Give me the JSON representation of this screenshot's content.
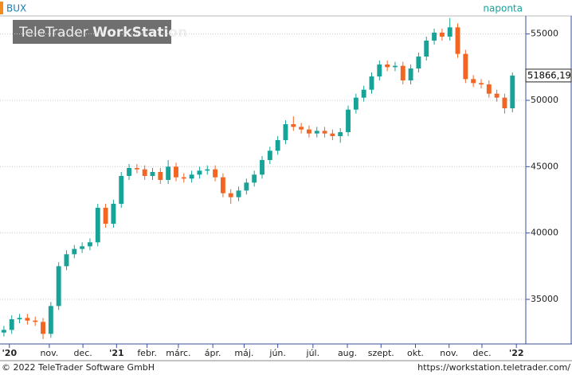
{
  "chart_data": {
    "type": "candlestick",
    "title": "BUX",
    "interval": "naponta",
    "watermark": [
      "TeleTrader",
      "WorkStation"
    ],
    "footer_left": "© 2022 TeleTrader Software GmbH",
    "footer_right": "https://workstation.teletrader.com/",
    "last_value_label": "51866,19",
    "up_color": "#17a398",
    "down_color": "#f26522",
    "grid": true,
    "xlim": [
      -0.5,
      66.5
    ],
    "xticks": [
      {
        "value": 0.7,
        "label": "'20"
      },
      {
        "value": 5.8,
        "label": "nov."
      },
      {
        "value": 10.1,
        "label": "dec."
      },
      {
        "value": 14.4,
        "label": "'21"
      },
      {
        "value": 18.3,
        "label": "febr."
      },
      {
        "value": 22.3,
        "label": "márc."
      },
      {
        "value": 26.7,
        "label": "ápr."
      },
      {
        "value": 30.7,
        "label": "máj."
      },
      {
        "value": 35,
        "label": "jún."
      },
      {
        "value": 39.5,
        "label": "júl."
      },
      {
        "value": 43.9,
        "label": "aug."
      },
      {
        "value": 48.2,
        "label": "szept."
      },
      {
        "value": 52.6,
        "label": "okt."
      },
      {
        "value": 56.9,
        "label": "nov."
      },
      {
        "value": 61.1,
        "label": "dec."
      },
      {
        "value": 65.5,
        "label": "'22"
      }
    ],
    "ylim": [
      31640,
      56360
    ],
    "yticks": [
      35000,
      40000,
      45000,
      50000,
      55000
    ],
    "open": [
      32500,
      32700,
      33500,
      33600,
      33400,
      33300,
      32400,
      34500,
      37500,
      38400,
      38800,
      39000,
      39300,
      41900,
      40700,
      42200,
      44300,
      44900,
      44800,
      44300,
      44600,
      44000,
      45000,
      44200,
      44100,
      44400,
      44700,
      44800,
      44200,
      43000,
      42700,
      43200,
      43800,
      44400,
      45500,
      46200,
      47000,
      48200,
      48000,
      47800,
      47500,
      47700,
      47500,
      47300,
      47600,
      49300,
      50200,
      50800,
      51800,
      52700,
      52500,
      52600,
      51500,
      52400,
      53300,
      54500,
      55100,
      54800,
      55500,
      53500,
      51600,
      51300,
      51200,
      50500,
      50200,
      49400
    ],
    "high": [
      33000,
      33800,
      33900,
      33900,
      33700,
      33600,
      34800,
      37800,
      38700,
      39100,
      39300,
      39600,
      42200,
      42200,
      42500,
      44600,
      45200,
      45200,
      45100,
      44900,
      44900,
      45500,
      45300,
      44500,
      44700,
      45000,
      45100,
      45100,
      44500,
      43300,
      43500,
      44100,
      44700,
      45800,
      46500,
      47300,
      48500,
      48800,
      48300,
      48100,
      48000,
      48000,
      47800,
      47900,
      49600,
      50500,
      51100,
      52100,
      53000,
      53000,
      52900,
      52900,
      52700,
      53600,
      54800,
      55400,
      55400,
      56200,
      55800,
      53800,
      51900,
      51600,
      51500,
      50800,
      50500,
      52100
    ],
    "low": [
      32200,
      32400,
      33200,
      33100,
      33000,
      32000,
      32100,
      34200,
      37200,
      38100,
      38500,
      38700,
      39000,
      40400,
      40400,
      41900,
      44000,
      44500,
      44000,
      44000,
      43700,
      43700,
      43900,
      43800,
      43800,
      44100,
      44400,
      43900,
      42700,
      42200,
      42400,
      42900,
      43500,
      44100,
      45200,
      45900,
      46700,
      47700,
      47500,
      47200,
      47200,
      47200,
      47000,
      46800,
      47300,
      49000,
      49900,
      50500,
      51500,
      52200,
      52200,
      51200,
      51200,
      52100,
      53000,
      54200,
      54500,
      54500,
      53200,
      51300,
      51000,
      50900,
      50200,
      49900,
      49000,
      49100
    ],
    "close": [
      32700,
      33500,
      33600,
      33400,
      33300,
      32400,
      34500,
      37500,
      38400,
      38800,
      39000,
      39300,
      41900,
      40700,
      42200,
      44300,
      44900,
      44800,
      44300,
      44600,
      44000,
      45000,
      44200,
      44100,
      44400,
      44700,
      44800,
      44200,
      43000,
      42700,
      43200,
      43800,
      44400,
      45500,
      46200,
      47000,
      48200,
      48000,
      47800,
      47500,
      47700,
      47500,
      47300,
      47600,
      49300,
      50200,
      50800,
      51800,
      52700,
      52500,
      52600,
      51500,
      52400,
      53300,
      54500,
      55100,
      54800,
      55500,
      53500,
      51600,
      51300,
      51200,
      50500,
      50200,
      49400,
      51866.19
    ]
  }
}
